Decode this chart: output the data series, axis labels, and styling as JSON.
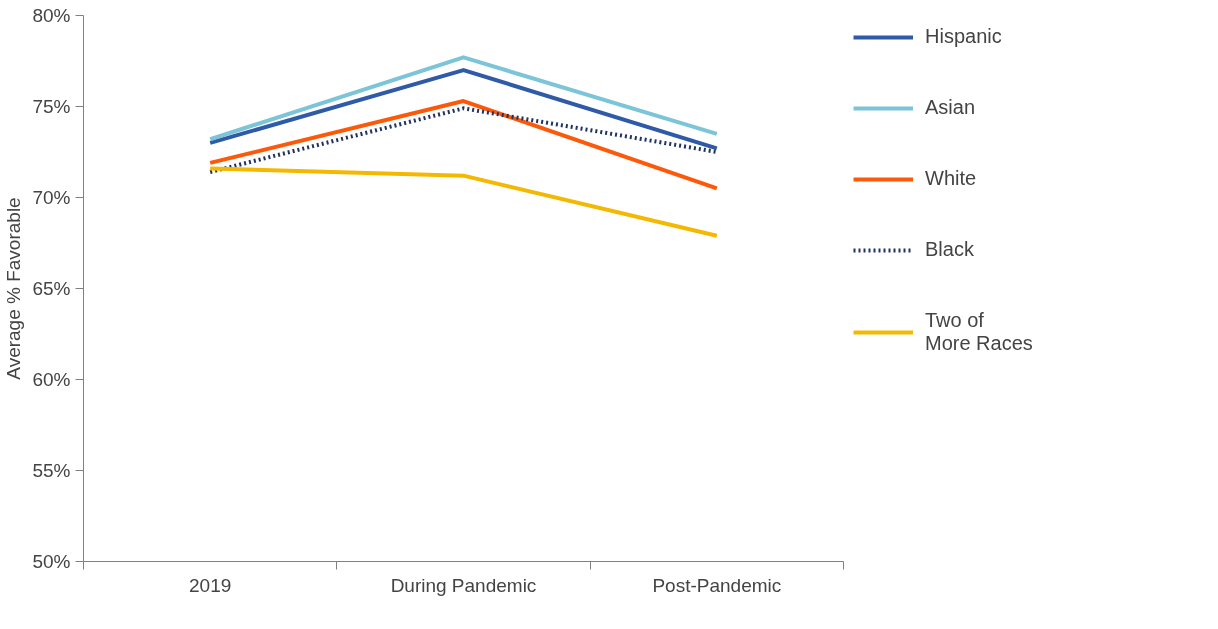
{
  "chart_data": {
    "type": "line",
    "ylabel": "Average % Favorable",
    "categories": [
      "2019",
      "During Pandemic",
      "Post-Pandemic"
    ],
    "ylim": [
      50,
      80
    ],
    "yticks": [
      {
        "value": 50,
        "label": "50%"
      },
      {
        "value": 55,
        "label": "55%"
      },
      {
        "value": 60,
        "label": "60%"
      },
      {
        "value": 65,
        "label": "65%"
      },
      {
        "value": 70,
        "label": "70%"
      },
      {
        "value": 75,
        "label": "75%"
      },
      {
        "value": 80,
        "label": "80%"
      }
    ],
    "grid": false,
    "legend": "right",
    "marker": "none",
    "line_style": "solid",
    "series": [
      {
        "name": "Hispanic",
        "color": "#2e5aa8",
        "values": [
          73.0,
          77.0,
          72.7
        ]
      },
      {
        "name": "Asian",
        "color": "#7cc4d8",
        "values": [
          73.2,
          77.7,
          73.5
        ]
      },
      {
        "name": "White",
        "color": "#fc5a0a",
        "values": [
          71.9,
          75.3,
          70.5
        ]
      },
      {
        "name": "Black",
        "color": "#1f3260",
        "line_style": "dotted",
        "values": [
          71.4,
          74.9,
          72.5
        ]
      },
      {
        "name": "Two of\nMore Races",
        "color": "#f5b800",
        "values": [
          71.6,
          71.2,
          67.9
        ]
      }
    ]
  }
}
